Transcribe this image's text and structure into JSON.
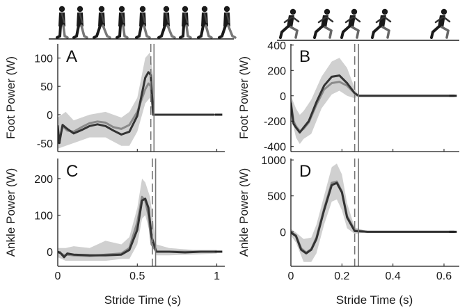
{
  "figure": {
    "xlabel": "Stride Time (s)"
  },
  "chart_data": [
    {
      "id": "A",
      "type": "line",
      "panel_letter": "A",
      "title": "",
      "ylabel": "Foot Power (W)",
      "xlabel": "",
      "xlim": [
        0,
        1.05
      ],
      "ylim": [
        -65,
        125
      ],
      "xticks": [
        0,
        0.5,
        1
      ],
      "xtick_labels": [
        "",
        "",
        ""
      ],
      "yticks": [
        -50,
        0,
        50,
        100
      ],
      "ytick_labels": [
        "-50",
        "0",
        "50",
        "100"
      ],
      "vlines": [
        {
          "x": 0.585,
          "style": "dashed"
        },
        {
          "x": 0.605,
          "style": "solid"
        }
      ],
      "series": [
        {
          "color": "#333333",
          "x": [
            0,
            0.01,
            0.03,
            0.06,
            0.1,
            0.15,
            0.2,
            0.25,
            0.3,
            0.35,
            0.4,
            0.45,
            0.5,
            0.55,
            0.57,
            0.585,
            0.6,
            0.605,
            0.7,
            0.8,
            0.9,
            0.98
          ],
          "y": [
            -20,
            -50,
            -18,
            -25,
            -33,
            -27,
            -20,
            -17,
            -20,
            -28,
            -35,
            -30,
            -2,
            65,
            75,
            70,
            0,
            0,
            0,
            0,
            0,
            0
          ]
        },
        {
          "color": "#8a8a8a",
          "x": [
            0,
            0.01,
            0.03,
            0.06,
            0.1,
            0.15,
            0.2,
            0.25,
            0.3,
            0.35,
            0.4,
            0.45,
            0.5,
            0.55,
            0.57,
            0.585,
            0.6,
            0.605,
            0.7,
            0.8,
            0.9,
            0.98
          ],
          "y": [
            -25,
            -45,
            -20,
            -28,
            -30,
            -22,
            -15,
            -12,
            -14,
            -22,
            -25,
            -18,
            5,
            45,
            55,
            50,
            0,
            0,
            0,
            0,
            0,
            0
          ]
        }
      ],
      "band": {
        "x": [
          0,
          0.05,
          0.1,
          0.2,
          0.3,
          0.4,
          0.45,
          0.5,
          0.55,
          0.58,
          0.6,
          0.605
        ],
        "upper": [
          -5,
          5,
          -10,
          0,
          5,
          -5,
          5,
          30,
          100,
          110,
          70,
          0
        ],
        "lower": [
          -60,
          -55,
          -50,
          -40,
          -40,
          -55,
          -55,
          -30,
          20,
          30,
          0,
          0
        ]
      }
    },
    {
      "id": "B",
      "type": "line",
      "panel_letter": "B",
      "title": "",
      "ylabel": "Foot Power (W)",
      "xlabel": "",
      "xlim": [
        0,
        0.66
      ],
      "ylim": [
        -440,
        410
      ],
      "xticks": [
        0,
        0.2,
        0.4,
        0.6
      ],
      "xtick_labels": [
        "",
        "",
        "",
        ""
      ],
      "yticks": [
        -400,
        -200,
        0,
        200,
        400
      ],
      "ytick_labels": [
        "-400",
        "-200",
        "0",
        "200",
        "400"
      ],
      "vlines": [
        {
          "x": 0.25,
          "style": "dashed"
        },
        {
          "x": 0.265,
          "style": "solid"
        }
      ],
      "series": [
        {
          "color": "#333333",
          "x": [
            0,
            0.01,
            0.02,
            0.035,
            0.05,
            0.07,
            0.1,
            0.13,
            0.16,
            0.19,
            0.22,
            0.25,
            0.265,
            0.4,
            0.55,
            0.64
          ],
          "y": [
            -60,
            -220,
            -250,
            -290,
            -250,
            -200,
            -50,
            80,
            150,
            160,
            100,
            20,
            0,
            0,
            0,
            0
          ]
        },
        {
          "color": "#8a8a8a",
          "x": [
            0,
            0.01,
            0.02,
            0.035,
            0.05,
            0.07,
            0.1,
            0.13,
            0.16,
            0.19,
            0.22,
            0.25,
            0.265,
            0.4,
            0.55,
            0.64
          ],
          "y": [
            -50,
            -200,
            -240,
            -280,
            -260,
            -210,
            -70,
            50,
            100,
            110,
            80,
            20,
            0,
            0,
            0,
            0
          ]
        }
      ],
      "band": {
        "x": [
          0,
          0.02,
          0.035,
          0.05,
          0.08,
          0.12,
          0.16,
          0.19,
          0.22,
          0.25,
          0.265
        ],
        "upper": [
          0,
          -100,
          -150,
          -120,
          -30,
          150,
          270,
          300,
          220,
          60,
          0
        ],
        "lower": [
          -150,
          -330,
          -380,
          -340,
          -300,
          -100,
          10,
          40,
          0,
          -20,
          0
        ]
      }
    },
    {
      "id": "C",
      "type": "line",
      "panel_letter": "C",
      "title": "",
      "ylabel": "Ankle Power (W)",
      "xlabel": "Stride Time (s)",
      "xlim": [
        0,
        1.05
      ],
      "ylim": [
        -40,
        255
      ],
      "xticks": [
        0,
        0.5,
        1
      ],
      "xtick_labels": [
        "0",
        "0.5",
        "1"
      ],
      "yticks": [
        0,
        100,
        200
      ],
      "ytick_labels": [
        "0",
        "100",
        "200"
      ],
      "vlines": [
        {
          "x": 0.595,
          "style": "dashed"
        },
        {
          "x": 0.615,
          "style": "solid"
        }
      ],
      "series": [
        {
          "color": "#333333",
          "x": [
            0,
            0.02,
            0.04,
            0.06,
            0.1,
            0.2,
            0.3,
            0.4,
            0.45,
            0.5,
            0.53,
            0.55,
            0.57,
            0.59,
            0.62,
            0.7,
            0.8,
            0.9,
            1.0
          ],
          "y": [
            0,
            -5,
            -15,
            -5,
            -8,
            -10,
            -10,
            -8,
            5,
            60,
            140,
            145,
            120,
            40,
            0,
            0,
            -2,
            0,
            0
          ]
        },
        {
          "color": "#8a8a8a",
          "x": [
            0,
            0.02,
            0.04,
            0.06,
            0.1,
            0.2,
            0.3,
            0.4,
            0.45,
            0.5,
            0.53,
            0.55,
            0.57,
            0.59,
            0.62,
            0.7,
            0.8,
            0.9,
            1.0
          ],
          "y": [
            0,
            -5,
            -10,
            -8,
            -10,
            -12,
            -8,
            -5,
            10,
            80,
            150,
            140,
            100,
            20,
            0,
            0,
            0,
            0,
            0
          ]
        }
      ],
      "band": {
        "x": [
          0,
          0.05,
          0.1,
          0.2,
          0.3,
          0.4,
          0.45,
          0.5,
          0.53,
          0.55,
          0.58,
          0.62,
          0.7,
          0.85,
          1.0
        ],
        "upper": [
          10,
          10,
          15,
          10,
          30,
          20,
          40,
          120,
          200,
          190,
          150,
          20,
          10,
          5,
          5
        ],
        "lower": [
          -15,
          -25,
          -25,
          -25,
          -25,
          -20,
          -20,
          20,
          90,
          100,
          50,
          -10,
          -10,
          -8,
          -5
        ]
      }
    },
    {
      "id": "D",
      "type": "line",
      "panel_letter": "D",
      "title": "",
      "ylabel": "Ankle Power (W)",
      "xlabel": "Stride Time (s)",
      "xlim": [
        0,
        0.66
      ],
      "ylim": [
        -480,
        1020
      ],
      "xticks": [
        0,
        0.2,
        0.4,
        0.6
      ],
      "xtick_labels": [
        "0",
        "0.2",
        "0.4",
        "0.6"
      ],
      "yticks": [
        0,
        500,
        1000
      ],
      "ytick_labels": [
        "0",
        "500",
        "1000"
      ],
      "vlines": [
        {
          "x": 0.25,
          "style": "dashed"
        },
        {
          "x": 0.265,
          "style": "solid"
        }
      ],
      "series": [
        {
          "color": "#333333",
          "x": [
            0,
            0.02,
            0.04,
            0.06,
            0.08,
            0.1,
            0.13,
            0.16,
            0.18,
            0.2,
            0.22,
            0.25,
            0.3,
            0.4,
            0.5,
            0.6,
            0.64
          ],
          "y": [
            -10,
            -60,
            -250,
            -300,
            -250,
            -100,
            300,
            650,
            680,
            550,
            200,
            10,
            0,
            0,
            0,
            0,
            0
          ]
        },
        {
          "color": "#8a8a8a",
          "x": [
            0,
            0.02,
            0.04,
            0.06,
            0.08,
            0.1,
            0.13,
            0.16,
            0.18,
            0.2,
            0.22,
            0.25,
            0.3,
            0.4,
            0.5,
            0.6,
            0.64
          ],
          "y": [
            0,
            -50,
            -230,
            -290,
            -240,
            -80,
            320,
            680,
            700,
            560,
            220,
            20,
            0,
            0,
            0,
            0,
            0
          ]
        }
      ],
      "band": {
        "x": [
          0,
          0.02,
          0.05,
          0.08,
          0.1,
          0.13,
          0.16,
          0.18,
          0.2,
          0.22,
          0.25,
          0.3
        ],
        "upper": [
          40,
          -10,
          -100,
          -80,
          100,
          500,
          900,
          950,
          800,
          400,
          60,
          10
        ],
        "lower": [
          -50,
          -150,
          -420,
          -420,
          -300,
          100,
          420,
          450,
          300,
          50,
          -30,
          -5
        ]
      }
    }
  ]
}
